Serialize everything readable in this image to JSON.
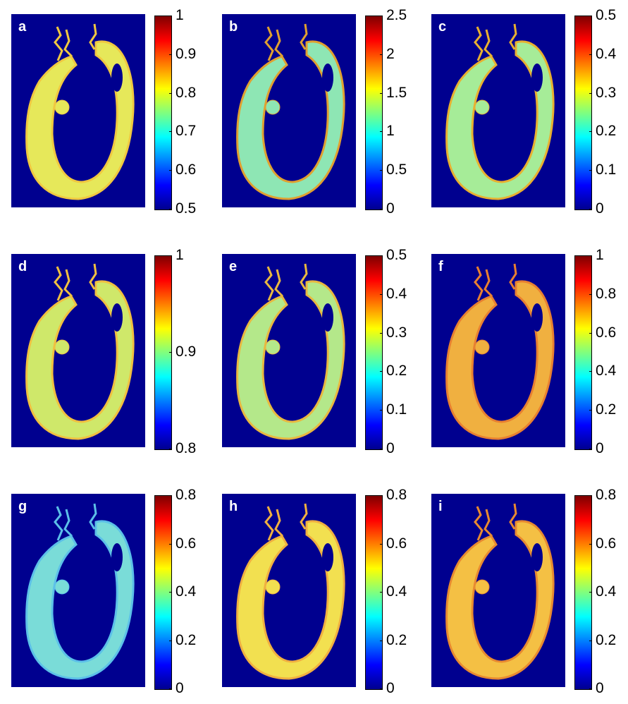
{
  "panels": [
    {
      "label": "a",
      "ticks": [
        "1",
        "0.9",
        "0.8",
        "0.7",
        "0.6",
        "0.5"
      ],
      "tint": "#e6e85a",
      "edge": "#f0c840"
    },
    {
      "label": "b",
      "ticks": [
        "2.5",
        "2",
        "1.5",
        "1",
        "0.5",
        "0"
      ],
      "tint": "#8ee6b4",
      "edge": "#e0a030"
    },
    {
      "label": "c",
      "ticks": [
        "0.5",
        "0.4",
        "0.3",
        "0.2",
        "0.1",
        "0"
      ],
      "tint": "#a6ec98",
      "edge": "#e8b030"
    },
    {
      "label": "d",
      "ticks": [
        "1",
        "0.9",
        "0.8"
      ],
      "tint": "#cfe86a",
      "edge": "#f0c040"
    },
    {
      "label": "e",
      "ticks": [
        "0.5",
        "0.4",
        "0.3",
        "0.2",
        "0.1",
        "0"
      ],
      "tint": "#b4e88a",
      "edge": "#e8b840"
    },
    {
      "label": "f",
      "ticks": [
        "1",
        "0.8",
        "0.6",
        "0.4",
        "0.2",
        "0"
      ],
      "tint": "#f0b040",
      "edge": "#e88030"
    },
    {
      "label": "g",
      "ticks": [
        "0.8",
        "0.6",
        "0.4",
        "0.2",
        "0"
      ],
      "tint": "#7adcd8",
      "edge": "#5cc0e8"
    },
    {
      "label": "h",
      "ticks": [
        "0.8",
        "0.6",
        "0.4",
        "0.2",
        "0"
      ],
      "tint": "#f2e050",
      "edge": "#f0b040"
    },
    {
      "label": "i",
      "ticks": [
        "0.8",
        "0.6",
        "0.4",
        "0.2",
        "0"
      ],
      "tint": "#f4c044",
      "edge": "#e88a30"
    }
  ]
}
